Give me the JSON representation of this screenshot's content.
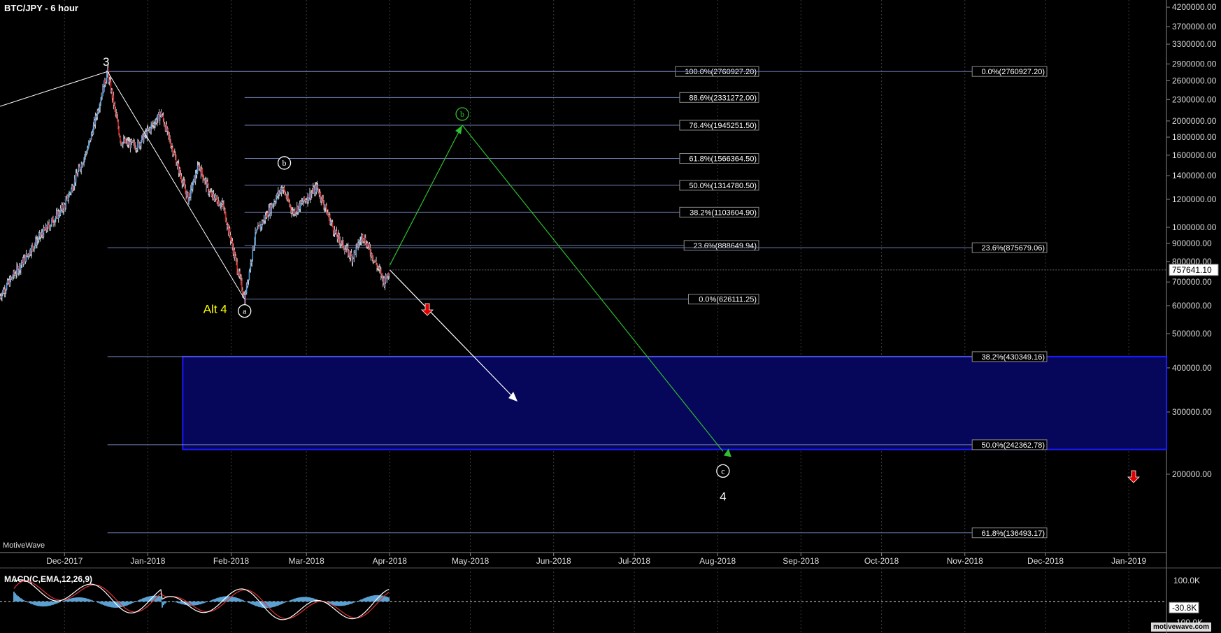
{
  "window": {
    "title": "BTC/JPY - 6 hour",
    "brand": "MotiveWave",
    "watermark": "motivewave.com"
  },
  "macd_panel": {
    "title": "MACD(C,EMA,12,26,9)",
    "axis_labels": [
      "100.0K",
      "-100.0K"
    ],
    "current_value": "-30.8K",
    "colors": {
      "macd": "#ffffff",
      "signal": "#e03030",
      "histogram": "#5aa0d0"
    }
  },
  "price_axis": {
    "ticks": [
      "4200000.00",
      "3700000.00",
      "3300000.00",
      "2900000.00",
      "2600000.00",
      "2300000.00",
      "2000000.00",
      "1800000.00",
      "1600000.00",
      "1400000.00",
      "1200000.00",
      "1000000.00",
      "900000.00",
      "800000.00",
      "700000.00",
      "600000.00",
      "500000.00",
      "400000.00",
      "300000.00",
      "200000.00"
    ],
    "current_price": "757641.10",
    "scale": "log"
  },
  "time_axis": {
    "ticks": [
      "Dec-2017",
      "Jan-2018",
      "Feb-2018",
      "Mar-2018",
      "Apr-2018",
      "May-2018",
      "Jun-2018",
      "Jul-2018",
      "Aug-2018",
      "Sep-2018",
      "Oct-2018",
      "Nov-2018",
      "Dec-2018",
      "Jan-2019"
    ]
  },
  "colors": {
    "background": "#000000",
    "fib_line": "#6b7cb0",
    "target_box_fill": "#06065a",
    "target_box_border": "#1a1aff",
    "green_path": "#2ec02e",
    "white_path": "#ffffff",
    "alt_label": "#ffff00",
    "down_arrow": "#e00000"
  },
  "fib_left": [
    {
      "label": "100.0%(2760927.20)",
      "price": 2760927.2
    },
    {
      "label": "88.6%(2331272.00)",
      "price": 2331272.0
    },
    {
      "label": "76.4%(1945251.50)",
      "price": 1945251.5
    },
    {
      "label": "61.8%(1566364.50)",
      "price": 1566364.5
    },
    {
      "label": "50.0%(1314780.50)",
      "price": 1314780.5
    },
    {
      "label": "38.2%(1103604.90)",
      "price": 1103604.9
    },
    {
      "label": "23.6%(888649.94)",
      "price": 888649.94
    },
    {
      "label": "0.0%(626111.25)",
      "price": 626111.25
    }
  ],
  "fib_right": [
    {
      "label": "0.0%(2760927.20)",
      "price": 2760927.2
    },
    {
      "label": "23.6%(875679.06)",
      "price": 875679.06
    },
    {
      "label": "38.2%(430349.16)",
      "price": 430349.16
    },
    {
      "label": "50.0%(242362.78)",
      "price": 242362.78
    },
    {
      "label": "61.8%(136493.17)",
      "price": 136493.17
    }
  ],
  "wave_labels": {
    "w3": "3",
    "alt4": "Alt 4",
    "a": "a",
    "b_white": "b",
    "b_green": "b",
    "c": "c",
    "w4": "4"
  },
  "chart_data": {
    "type": "candlestick",
    "title": "BTC/JPY - 6 hour",
    "yscale": "log",
    "ylim": [
      120000,
      4400000
    ],
    "xlim": [
      "2017-11-07",
      "2019-01-15"
    ],
    "last_price": 757641.1,
    "swing_points": [
      {
        "date": "2017-11-07",
        "price": 640000
      },
      {
        "date": "2017-11-20",
        "price": 900000
      },
      {
        "date": "2017-12-01",
        "price": 1150000
      },
      {
        "date": "2017-12-10",
        "price": 1700000
      },
      {
        "date": "2017-12-17",
        "price": 2760927
      },
      {
        "date": "2017-12-22",
        "price": 1750000
      },
      {
        "date": "2017-12-28",
        "price": 1700000
      },
      {
        "date": "2018-01-06",
        "price": 2100000
      },
      {
        "date": "2018-01-16",
        "price": 1200000
      },
      {
        "date": "2018-01-20",
        "price": 1500000
      },
      {
        "date": "2018-01-24",
        "price": 1250000
      },
      {
        "date": "2018-01-29",
        "price": 1150000
      },
      {
        "date": "2018-02-06",
        "price": 626111
      },
      {
        "date": "2018-02-10",
        "price": 950000
      },
      {
        "date": "2018-02-20",
        "price": 1300000
      },
      {
        "date": "2018-02-24",
        "price": 1100000
      },
      {
        "date": "2018-03-05",
        "price": 1300000
      },
      {
        "date": "2018-03-12",
        "price": 950000
      },
      {
        "date": "2018-03-18",
        "price": 820000
      },
      {
        "date": "2018-03-22",
        "price": 950000
      },
      {
        "date": "2018-03-30",
        "price": 700000
      },
      {
        "date": "2018-04-01",
        "price": 757641
      }
    ],
    "projection_green": [
      {
        "date": "2018-04-01",
        "price": 780000
      },
      {
        "date": "2018-04-28",
        "price": 1945251
      },
      {
        "date": "2018-08-03",
        "price": 232000
      }
    ],
    "projection_white": [
      {
        "date": "2018-04-01",
        "price": 757641
      },
      {
        "date": "2018-05-17",
        "price": 330000
      }
    ],
    "target_zone": {
      "from": "2018-01-14",
      "to": "2019-01-15",
      "top": 430349.16,
      "bottom": 235000
    },
    "macd": {
      "fast": 12,
      "slow": 26,
      "signal": 9,
      "last": -30800,
      "ylim": [
        -150000,
        150000
      ]
    }
  }
}
